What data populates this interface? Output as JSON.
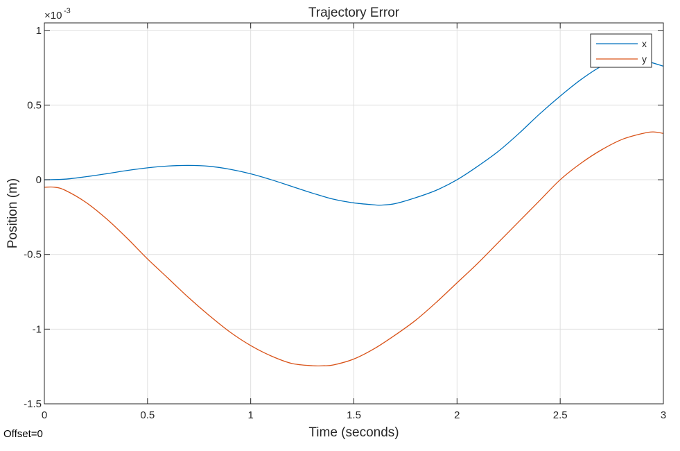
{
  "offset_text": "Offset=0",
  "colors": {
    "x": "#0072BD",
    "y": "#D95319",
    "grid": "#DFDFDF",
    "axis": "#262626"
  },
  "chart_data": {
    "type": "line",
    "title": "Trajectory Error",
    "xlabel": "Time (seconds)",
    "ylabel": "Position (m)",
    "y_exponent_label": "×10",
    "y_exponent_power": "-3",
    "xlim": [
      0,
      3
    ],
    "ylim": [
      -1.5,
      1.05
    ],
    "xticks": [
      0,
      0.5,
      1,
      1.5,
      2,
      2.5,
      3
    ],
    "xtick_labels": [
      "0",
      "0.5",
      "1",
      "1.5",
      "2",
      "2.5",
      "3"
    ],
    "yticks": [
      -1.5,
      -1,
      -0.5,
      0,
      0.5,
      1
    ],
    "ytick_labels": [
      "-1.5",
      "-1",
      "-0.5",
      "0",
      "0.5",
      "1"
    ],
    "grid": true,
    "legend_position": "top-right",
    "series": [
      {
        "name": "x",
        "color_key": "x",
        "x": [
          0,
          0.1,
          0.2,
          0.3,
          0.4,
          0.5,
          0.6,
          0.7,
          0.8,
          0.9,
          1.0,
          1.1,
          1.2,
          1.3,
          1.4,
          1.5,
          1.6,
          1.63,
          1.7,
          1.8,
          1.9,
          2.0,
          2.1,
          2.2,
          2.3,
          2.4,
          2.5,
          2.6,
          2.7,
          2.8,
          2.9,
          3.0
        ],
        "y": [
          0.0,
          0.004,
          0.02,
          0.04,
          0.062,
          0.08,
          0.092,
          0.096,
          0.09,
          0.07,
          0.04,
          0.0,
          -0.045,
          -0.09,
          -0.13,
          -0.155,
          -0.168,
          -0.17,
          -0.16,
          -0.12,
          -0.07,
          0.0,
          0.09,
          0.19,
          0.31,
          0.44,
          0.56,
          0.67,
          0.76,
          0.815,
          0.8,
          0.76
        ]
      },
      {
        "name": "y",
        "color_key": "y",
        "x": [
          0,
          0.05,
          0.1,
          0.2,
          0.3,
          0.4,
          0.5,
          0.6,
          0.7,
          0.8,
          0.9,
          1.0,
          1.1,
          1.2,
          1.3,
          1.35,
          1.4,
          1.5,
          1.6,
          1.7,
          1.8,
          1.9,
          2.0,
          2.1,
          2.2,
          2.3,
          2.4,
          2.5,
          2.6,
          2.7,
          2.8,
          2.9,
          2.95,
          3.0
        ],
        "y": [
          -0.05,
          -0.05,
          -0.07,
          -0.15,
          -0.26,
          -0.39,
          -0.53,
          -0.66,
          -0.79,
          -0.91,
          -1.02,
          -1.11,
          -1.18,
          -1.23,
          -1.245,
          -1.245,
          -1.24,
          -1.2,
          -1.13,
          -1.04,
          -0.94,
          -0.82,
          -0.69,
          -0.56,
          -0.42,
          -0.28,
          -0.14,
          0.0,
          0.11,
          0.2,
          0.27,
          0.31,
          0.32,
          0.31
        ]
      }
    ]
  }
}
